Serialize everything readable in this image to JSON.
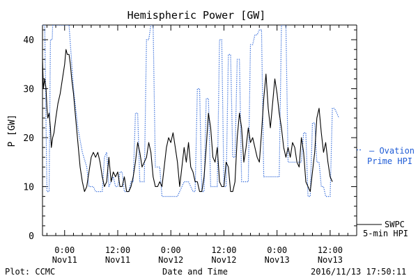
{
  "chart_data": {
    "type": "line",
    "title": "Hemispheric Power [GW]",
    "ylabel": "P [GW]",
    "xlabel": "Date and Time",
    "ylim": [
      0,
      43
    ],
    "yticks": [
      0,
      10,
      20,
      30,
      40
    ],
    "xlim": [
      -5,
      66
    ],
    "x_unit": "hours since 2016-11-11 00:00",
    "x_ticks": [
      {
        "x": 0,
        "time": "0:00",
        "date": "Nov11"
      },
      {
        "x": 12,
        "time": "12:00",
        "date": "Nov11"
      },
      {
        "x": 24,
        "time": "0:00",
        "date": "Nov12"
      },
      {
        "x": 36,
        "time": "12:00",
        "date": "Nov12"
      },
      {
        "x": 48,
        "time": "0:00",
        "date": "Nov13"
      },
      {
        "x": 60,
        "time": "12:00",
        "date": "Nov13"
      }
    ],
    "legend_placement": "right",
    "series": [
      {
        "name": "SWPC 5-min HPI",
        "color": "#000000",
        "style": "solid",
        "points": [
          [
            -5,
            36
          ],
          [
            -4.8,
            30
          ],
          [
            -4.5,
            32
          ],
          [
            -4.2,
            30
          ],
          [
            -4,
            26
          ],
          [
            -3.8,
            24
          ],
          [
            -3.5,
            25
          ],
          [
            -3.2,
            22
          ],
          [
            -3,
            18
          ],
          [
            -2.7,
            20
          ],
          [
            -2.4,
            21
          ],
          [
            -2,
            24
          ],
          [
            -1.5,
            27
          ],
          [
            -1,
            29
          ],
          [
            -0.5,
            32
          ],
          [
            0,
            35
          ],
          [
            0.3,
            38
          ],
          [
            0.6,
            37
          ],
          [
            1,
            37
          ],
          [
            1.3,
            35
          ],
          [
            1.6,
            32
          ],
          [
            2,
            29
          ],
          [
            2.5,
            24
          ],
          [
            3,
            19
          ],
          [
            3.5,
            14
          ],
          [
            4,
            11
          ],
          [
            4.5,
            9
          ],
          [
            5,
            10
          ],
          [
            5.5,
            13
          ],
          [
            6,
            16
          ],
          [
            6.5,
            17
          ],
          [
            7,
            16
          ],
          [
            7.5,
            17
          ],
          [
            8,
            15
          ],
          [
            8.5,
            12
          ],
          [
            9,
            10
          ],
          [
            9.5,
            11
          ],
          [
            10,
            16
          ],
          [
            10.5,
            11
          ],
          [
            11,
            13
          ],
          [
            11.5,
            12
          ],
          [
            12,
            13
          ],
          [
            12.5,
            10
          ],
          [
            13,
            10
          ],
          [
            13.5,
            12
          ],
          [
            14,
            9
          ],
          [
            14.5,
            9
          ],
          [
            15,
            10
          ],
          [
            15.5,
            12
          ],
          [
            16,
            15
          ],
          [
            16.5,
            19
          ],
          [
            17,
            17
          ],
          [
            17.5,
            14
          ],
          [
            18,
            15
          ],
          [
            18.5,
            16
          ],
          [
            19,
            19
          ],
          [
            19.5,
            17
          ],
          [
            20,
            12
          ],
          [
            20.5,
            10
          ],
          [
            21,
            10
          ],
          [
            21.5,
            11
          ],
          [
            22,
            10
          ],
          [
            22.5,
            14
          ],
          [
            23,
            18
          ],
          [
            23.5,
            20
          ],
          [
            24,
            19
          ],
          [
            24.5,
            21
          ],
          [
            25,
            18
          ],
          [
            25.5,
            15
          ],
          [
            26,
            10
          ],
          [
            26.5,
            14
          ],
          [
            27,
            18
          ],
          [
            27.5,
            15
          ],
          [
            28,
            19
          ],
          [
            28.5,
            14
          ],
          [
            29,
            13
          ],
          [
            29.5,
            11
          ],
          [
            30,
            11
          ],
          [
            30.5,
            9
          ],
          [
            31,
            9
          ],
          [
            31.5,
            12
          ],
          [
            32,
            18
          ],
          [
            32.5,
            25
          ],
          [
            33,
            22
          ],
          [
            33.5,
            16
          ],
          [
            34,
            15
          ],
          [
            34.5,
            18
          ],
          [
            35,
            11
          ],
          [
            35.5,
            10
          ],
          [
            36,
            10
          ],
          [
            36.5,
            15
          ],
          [
            37,
            14
          ],
          [
            37.5,
            9
          ],
          [
            38,
            9
          ],
          [
            38.5,
            11
          ],
          [
            39,
            20
          ],
          [
            39.5,
            25
          ],
          [
            40,
            22
          ],
          [
            40.5,
            15
          ],
          [
            41,
            18
          ],
          [
            41.5,
            22
          ],
          [
            42,
            19
          ],
          [
            42.5,
            20
          ],
          [
            43,
            18
          ],
          [
            43.5,
            16
          ],
          [
            44,
            15
          ],
          [
            44.5,
            21
          ],
          [
            45,
            28
          ],
          [
            45.5,
            33
          ],
          [
            46,
            26
          ],
          [
            46.5,
            22
          ],
          [
            47,
            27
          ],
          [
            47.5,
            32
          ],
          [
            48,
            29
          ],
          [
            48.5,
            25
          ],
          [
            49,
            22
          ],
          [
            49.5,
            18
          ],
          [
            50,
            16
          ],
          [
            50.5,
            18
          ],
          [
            51,
            16
          ],
          [
            51.5,
            19
          ],
          [
            52,
            18
          ],
          [
            52.5,
            15
          ],
          [
            53,
            14
          ],
          [
            53.5,
            20
          ],
          [
            54,
            17
          ],
          [
            54.5,
            11
          ],
          [
            55,
            10
          ],
          [
            55.5,
            9
          ],
          [
            56,
            13
          ],
          [
            56.5,
            17
          ],
          [
            57,
            24
          ],
          [
            57.5,
            26
          ],
          [
            58,
            21
          ],
          [
            58.5,
            17
          ],
          [
            59,
            19
          ],
          [
            59.5,
            15
          ],
          [
            60,
            12
          ],
          [
            60.5,
            11
          ]
        ]
      },
      {
        "name": "Ovation Prime HPI",
        "color": "#1f5cd6",
        "style": "dotted",
        "points": [
          [
            -5,
            43
          ],
          [
            -4.5,
            43
          ],
          [
            -4,
            9
          ],
          [
            -3.5,
            9
          ],
          [
            -3.2,
            40
          ],
          [
            -2.8,
            40
          ],
          [
            -2.7,
            43
          ],
          [
            -1,
            43
          ],
          [
            1,
            43
          ],
          [
            2,
            30
          ],
          [
            3,
            22
          ],
          [
            4,
            17
          ],
          [
            5,
            14
          ],
          [
            5.5,
            10
          ],
          [
            6,
            10
          ],
          [
            6.5,
            10
          ],
          [
            7,
            9
          ],
          [
            7.5,
            9
          ],
          [
            8,
            9
          ],
          [
            8.5,
            9
          ],
          [
            9,
            16
          ],
          [
            9.5,
            17
          ],
          [
            10,
            10
          ],
          [
            10.5,
            11
          ],
          [
            11,
            12
          ],
          [
            11.5,
            10
          ],
          [
            12,
            10
          ],
          [
            12.5,
            13
          ],
          [
            13,
            13
          ],
          [
            13.5,
            9
          ],
          [
            14,
            9
          ],
          [
            14.5,
            9
          ],
          [
            15,
            11
          ],
          [
            15.5,
            11
          ],
          [
            16,
            25
          ],
          [
            16.5,
            25
          ],
          [
            17,
            11
          ],
          [
            17.5,
            11
          ],
          [
            18,
            11
          ],
          [
            18.5,
            40
          ],
          [
            19,
            40
          ],
          [
            19.5,
            43
          ],
          [
            20,
            43
          ],
          [
            20.5,
            14
          ],
          [
            21,
            14
          ],
          [
            21.5,
            14
          ],
          [
            22,
            8
          ],
          [
            22.5,
            8
          ],
          [
            23,
            8
          ],
          [
            23.5,
            8
          ],
          [
            24,
            8
          ],
          [
            24.5,
            8
          ],
          [
            25,
            8
          ],
          [
            25.5,
            8
          ],
          [
            26,
            9
          ],
          [
            26.5,
            10
          ],
          [
            27,
            11
          ],
          [
            27.5,
            11
          ],
          [
            28,
            11
          ],
          [
            28.5,
            10
          ],
          [
            29,
            9
          ],
          [
            29.5,
            9
          ],
          [
            30,
            30
          ],
          [
            30.5,
            30
          ],
          [
            31,
            9
          ],
          [
            31.5,
            9
          ],
          [
            32,
            28
          ],
          [
            32.5,
            28
          ],
          [
            33,
            10
          ],
          [
            33.5,
            10
          ],
          [
            34,
            10
          ],
          [
            34.5,
            10
          ],
          [
            35,
            40
          ],
          [
            35.5,
            40
          ],
          [
            36,
            10
          ],
          [
            36.5,
            10
          ],
          [
            37,
            37
          ],
          [
            37.5,
            37
          ],
          [
            38,
            16
          ],
          [
            38.5,
            16
          ],
          [
            39,
            36
          ],
          [
            39.5,
            36
          ],
          [
            40,
            11
          ],
          [
            40.5,
            11
          ],
          [
            41,
            11
          ],
          [
            41.5,
            11
          ],
          [
            42,
            39
          ],
          [
            42.5,
            39
          ],
          [
            43,
            41
          ],
          [
            43.5,
            41
          ],
          [
            44,
            42
          ],
          [
            44.5,
            42
          ],
          [
            45,
            12
          ],
          [
            45.5,
            12
          ],
          [
            46,
            12
          ],
          [
            46.5,
            12
          ],
          [
            47,
            12
          ],
          [
            47.5,
            12
          ],
          [
            48,
            12
          ],
          [
            48.5,
            12
          ],
          [
            49,
            43
          ],
          [
            49.5,
            43
          ],
          [
            50,
            43
          ],
          [
            50.5,
            15
          ],
          [
            51,
            15
          ],
          [
            51.5,
            15
          ],
          [
            52,
            15
          ],
          [
            52.5,
            15
          ],
          [
            53,
            15
          ],
          [
            53.5,
            15
          ],
          [
            54,
            21
          ],
          [
            54.5,
            21
          ],
          [
            55,
            8
          ],
          [
            55.5,
            8
          ],
          [
            56,
            23
          ],
          [
            56.5,
            23
          ],
          [
            57,
            15
          ],
          [
            57.5,
            15
          ],
          [
            58,
            10
          ],
          [
            58.5,
            10
          ],
          [
            59,
            8
          ],
          [
            59.5,
            8
          ],
          [
            60,
            8
          ],
          [
            60.5,
            26
          ],
          [
            61,
            26
          ],
          [
            61.5,
            25
          ],
          [
            62,
            24
          ]
        ]
      }
    ],
    "legend": {
      "ovation_label_1": "— Ovation",
      "ovation_label_2": "Prime HPI",
      "swpc_label_1": "SWPC",
      "swpc_label_2": "5-min HPI",
      "ovation_color": "#1f5cd6"
    }
  },
  "footer": {
    "plot_credit": "Plot: CCMC",
    "timestamp": "2016/11/13 17:50:11"
  }
}
